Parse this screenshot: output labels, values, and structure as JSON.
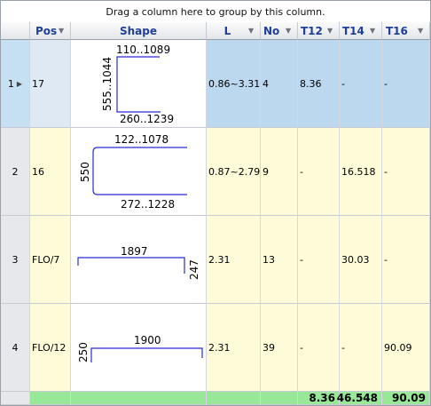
{
  "group_bar_text": "Drag a column here to group by this column.",
  "columns": [
    {
      "key": "pos",
      "label": "Pos"
    },
    {
      "key": "shape",
      "label": "Shape"
    },
    {
      "key": "l",
      "label": "L"
    },
    {
      "key": "no",
      "label": "No"
    },
    {
      "key": "t12",
      "label": "T12"
    },
    {
      "key": "t14",
      "label": "T14"
    },
    {
      "key": "t16",
      "label": "T16"
    }
  ],
  "rows": [
    {
      "index": "1",
      "pos": "17",
      "l": "0.86~3.31",
      "no": "4",
      "t12": "8.36",
      "t14": "-",
      "t16": "-",
      "shape": {
        "top": "110..1089",
        "left": "555..1044",
        "bottom": "260..1239"
      }
    },
    {
      "index": "2",
      "pos": "16",
      "l": "0.87~2.79",
      "no": "9",
      "t12": "-",
      "t14": "16.518",
      "t16": "-",
      "shape": {
        "top": "122..1078",
        "left": "550",
        "bottom": "272..1228"
      }
    },
    {
      "index": "3",
      "pos": "FLO/7",
      "l": "2.31",
      "no": "13",
      "t12": "-",
      "t14": "30.03",
      "t16": "-",
      "shape": {
        "top": "1897",
        "right": "247"
      }
    },
    {
      "index": "4",
      "pos": "FLO/12",
      "l": "2.31",
      "no": "39",
      "t12": "-",
      "t14": "-",
      "t16": "90.09",
      "shape": {
        "top": "1900",
        "left": "250"
      }
    }
  ],
  "totals": {
    "t12": "8.36",
    "t14": "46.548",
    "t16": "90.09"
  },
  "colors": {
    "shape_line": "#2a2ad8",
    "header_text": "#1f3f99",
    "total_bg": "#98e898",
    "row_bg": "#fefbd9",
    "selected_bg": "#bcd8ee"
  }
}
